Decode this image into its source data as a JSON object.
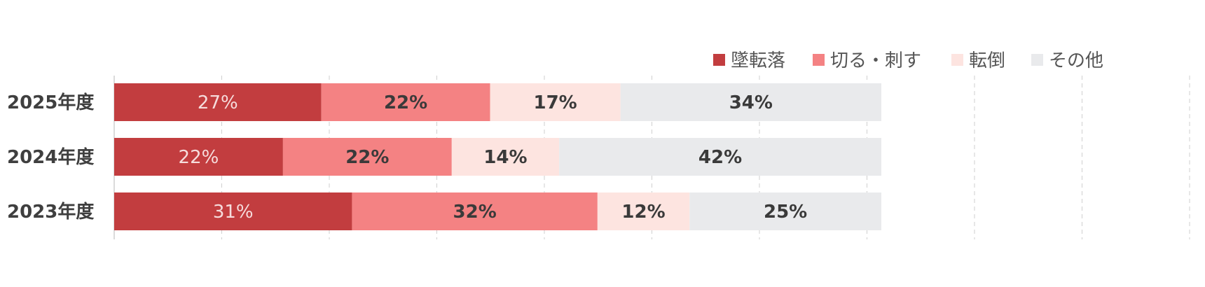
{
  "chart_data": {
    "type": "bar",
    "orientation": "horizontal",
    "stacked": true,
    "categories": [
      "2025年度",
      "2024年度",
      "2023年度"
    ],
    "series": [
      {
        "name": "墜転落",
        "color": "#c23d3f",
        "label_color": "#f6dcdc",
        "label_weight": "normal",
        "values": [
          27,
          22,
          31
        ]
      },
      {
        "name": "切る・刺す",
        "color": "#f48283",
        "label_color": "#3a3a3a",
        "label_weight": "bold",
        "values": [
          22,
          22,
          32
        ]
      },
      {
        "name": "転倒",
        "color": "#fde4e0",
        "label_color": "#3a3a3a",
        "label_weight": "bold",
        "values": [
          17,
          14,
          12
        ]
      },
      {
        "name": "その他",
        "color": "#e9eaec",
        "label_color": "#3a3a3a",
        "label_weight": "bold",
        "values": [
          34,
          42,
          25
        ]
      }
    ],
    "data_labels": [
      [
        "27%",
        "22%",
        "17%",
        "34%"
      ],
      [
        "22%",
        "22%",
        "14%",
        "42%"
      ],
      [
        "31%",
        "32%",
        "12%",
        "25%"
      ]
    ],
    "legend_position": "top-right",
    "grid": true
  }
}
